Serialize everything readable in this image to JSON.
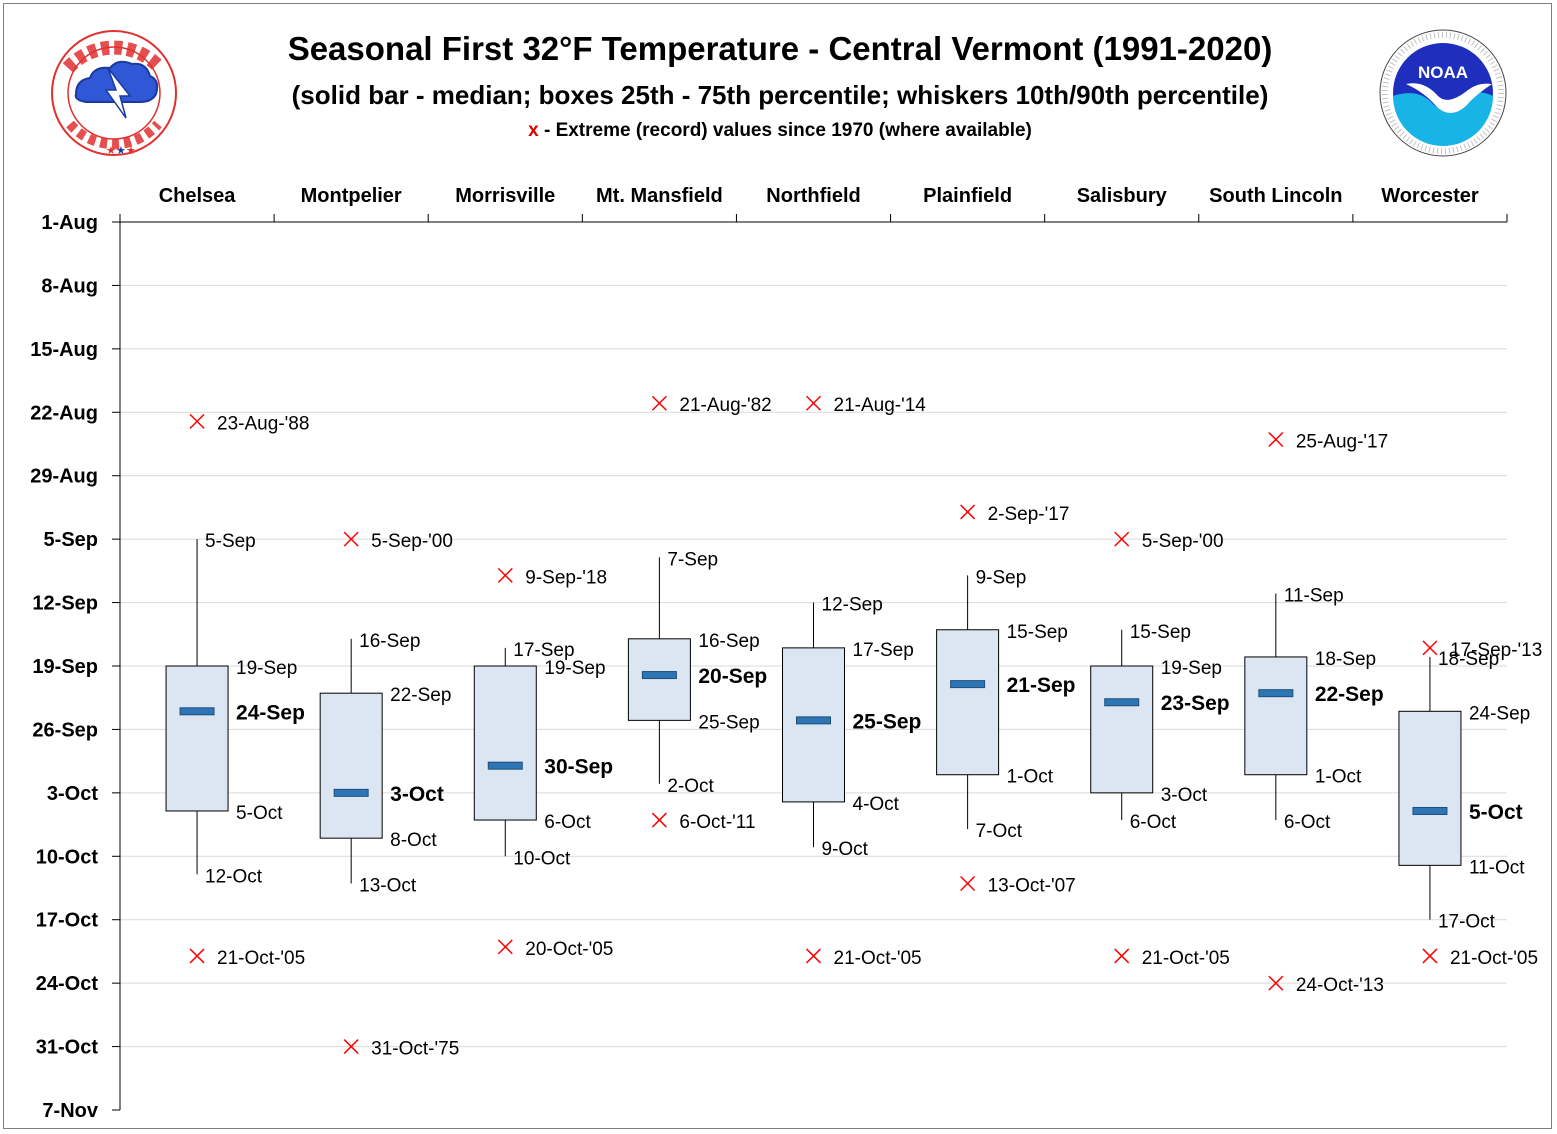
{
  "title": "Seasonal First 32°F Temperature - Central Vermont (1991-2020)",
  "subtitle": "(solid bar - median; boxes 25th - 75th percentile; whiskers 10th/90th percentile)",
  "legend": {
    "marker": "x",
    "text": " - Extreme (record) values since 1970 (where available)"
  },
  "logos": {
    "left": {
      "name": "national-weather-service-logo",
      "text": "NATIONAL WEATHER SERVICE"
    },
    "right": {
      "name": "noaa-logo",
      "text": "NOAA",
      "ring_text": "NATIONAL OCEANIC AND ATMOSPHERIC ADMINISTRATION · U.S. DEPARTMENT OF COMMERCE"
    }
  },
  "colors": {
    "box_fill": "#dce6f2",
    "box_stroke": "#000000",
    "median": "#2e75b6",
    "extreme": "#ff0000",
    "grid": "#d9d9d9"
  },
  "chart_data": {
    "type": "boxplot",
    "y_axis": {
      "direction": "top-to-bottom",
      "range": [
        "1-Aug",
        "7-Nov"
      ],
      "ticks": [
        "1-Aug",
        "8-Aug",
        "15-Aug",
        "22-Aug",
        "29-Aug",
        "5-Sep",
        "12-Sep",
        "19-Sep",
        "26-Sep",
        "3-Oct",
        "10-Oct",
        "17-Oct",
        "24-Oct",
        "31-Oct",
        "7-Nov"
      ]
    },
    "grid": true,
    "categories": [
      "Chelsea",
      "Montpelier",
      "Morrisville",
      "Mt. Mansfield",
      "Northfield",
      "Plainfield",
      "Salisbury",
      "South Lincoln",
      "Worcester"
    ],
    "series": [
      {
        "station": "Chelsea",
        "p10": "5-Sep",
        "p25": "19-Sep",
        "median": "24-Sep",
        "p75": "5-Oct",
        "p90": "12-Oct",
        "earliest_record": "23-Aug-'88",
        "latest_record": "21-Oct-'05"
      },
      {
        "station": "Montpelier",
        "p10": "16-Sep",
        "p25": "22-Sep",
        "median": "3-Oct",
        "p75": "8-Oct",
        "p90": "13-Oct",
        "earliest_record": "5-Sep-'00",
        "latest_record": "31-Oct-'75"
      },
      {
        "station": "Morrisville",
        "p10": "17-Sep",
        "p25": "19-Sep",
        "median": "30-Sep",
        "p75": "6-Oct",
        "p90": "10-Oct",
        "earliest_record": "9-Sep-'18",
        "latest_record": "20-Oct-'05"
      },
      {
        "station": "Mt. Mansfield",
        "p10": "7-Sep",
        "p25": "16-Sep",
        "median": "20-Sep",
        "p75": "25-Sep",
        "p90": "2-Oct",
        "earliest_record": "21-Aug-'82",
        "latest_record": "6-Oct-'11"
      },
      {
        "station": "Northfield",
        "p10": "12-Sep",
        "p25": "17-Sep",
        "median": "25-Sep",
        "p75": "4-Oct",
        "p90": "9-Oct",
        "earliest_record": "21-Aug-'14",
        "latest_record": "21-Oct-'05"
      },
      {
        "station": "Plainfield",
        "p10": "9-Sep",
        "p25": "15-Sep",
        "median": "21-Sep",
        "p75": "1-Oct",
        "p90": "7-Oct",
        "earliest_record": "2-Sep-'17",
        "latest_record": "13-Oct-'07"
      },
      {
        "station": "Salisbury",
        "p10": "15-Sep",
        "p25": "19-Sep",
        "median": "23-Sep",
        "p75": "3-Oct",
        "p90": "6-Oct",
        "earliest_record": "5-Sep-'00",
        "latest_record": "21-Oct-'05"
      },
      {
        "station": "South Lincoln",
        "p10": "11-Sep",
        "p25": "18-Sep",
        "median": "22-Sep",
        "p75": "1-Oct",
        "p90": "6-Oct",
        "earliest_record": "25-Aug-'17",
        "latest_record": "24-Oct-'13"
      },
      {
        "station": "Worcester",
        "p10": "18-Sep",
        "p25": "24-Sep",
        "median": "5-Oct",
        "p75": "11-Oct",
        "p90": "17-Oct",
        "earliest_record": "17-Sep-'13",
        "latest_record": "21-Oct-'05"
      }
    ]
  }
}
